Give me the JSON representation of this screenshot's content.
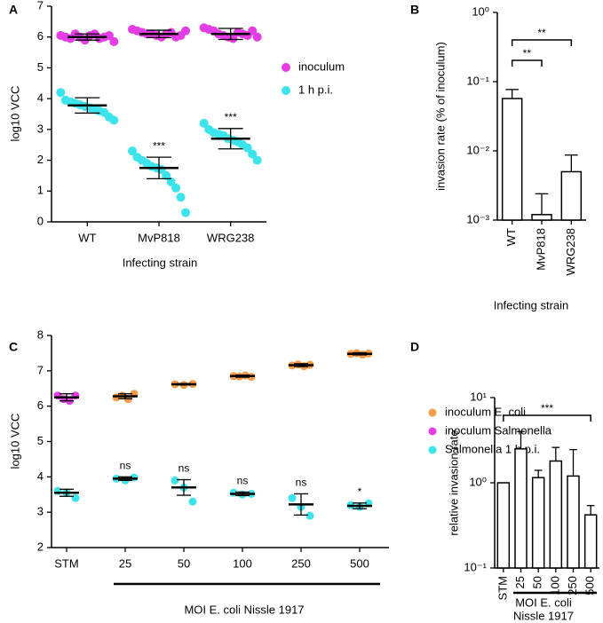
{
  "chart_data": [
    {
      "type": "dot",
      "panel": "A",
      "ylabel": "log10 VCC",
      "xlabel": "Infecting strain",
      "categories": [
        "WT",
        "MvP818",
        "WRG238"
      ],
      "ylim": [
        0,
        7
      ],
      "yticks": [
        0,
        1,
        2,
        3,
        4,
        5,
        6,
        7
      ],
      "series": [
        {
          "name": "inoculum",
          "color": "#e53de6",
          "values": [
            [
              6.05,
              6.0,
              5.95,
              6.1,
              6.0,
              5.9,
              6.05,
              6.1,
              5.95,
              6.0,
              6.05,
              5.85
            ],
            [
              6.25,
              6.2,
              6.15,
              6.1,
              6.1,
              6.05,
              6.0,
              6.1,
              6.15,
              6.0,
              6.05,
              6.2
            ],
            [
              6.3,
              6.25,
              6.2,
              6.1,
              6.05,
              6.0,
              5.95,
              6.15,
              6.1,
              6.05,
              6.2,
              6.0
            ]
          ],
          "mean": [
            6.0,
            6.1,
            6.1
          ],
          "sd": [
            0.1,
            0.12,
            0.18
          ]
        },
        {
          "name": "1 h p.i.",
          "color": "#3de3ea",
          "values": [
            [
              4.2,
              3.95,
              3.9,
              3.85,
              3.8,
              3.75,
              3.7,
              3.65,
              3.6,
              3.55,
              3.4,
              3.3
            ],
            [
              2.3,
              2.1,
              2.0,
              1.9,
              1.8,
              1.75,
              1.7,
              1.5,
              1.3,
              1.1,
              0.8,
              0.3
            ],
            [
              3.2,
              3.0,
              2.9,
              2.85,
              2.8,
              2.7,
              2.65,
              2.6,
              2.5,
              2.4,
              2.2,
              2.0
            ]
          ],
          "mean": [
            3.78,
            1.75,
            2.7
          ],
          "sd": [
            0.25,
            0.35,
            0.33
          ],
          "annotations": [
            null,
            "***",
            "***"
          ]
        }
      ]
    },
    {
      "type": "bar",
      "panel": "B",
      "ylabel": "invasion rate (% of inoculum)",
      "xlabel": "Infecting strain",
      "categories": [
        "WT",
        "MvP818",
        "WRG238"
      ],
      "values": [
        0.057,
        0.0012,
        0.005
      ],
      "errors": [
        0.02,
        0.0012,
        0.0037
      ],
      "log_y": true,
      "ylim": [
        0.001,
        1
      ],
      "yticks": [
        {
          "value": 0.001,
          "label": "10⁻³"
        },
        {
          "value": 0.01,
          "label": "10⁻²"
        },
        {
          "value": 0.1,
          "label": "10⁻¹"
        },
        {
          "value": 1,
          "label": "10⁰"
        }
      ],
      "brackets": [
        {
          "between": [
            "WT",
            "MvP818"
          ],
          "label": "**"
        },
        {
          "between": [
            "WT",
            "WRG238"
          ],
          "label": "**"
        }
      ]
    },
    {
      "type": "dot",
      "panel": "C",
      "ylabel": "log10 VCC",
      "xlabel": "MOI E. coli Nissle 1917",
      "categories": [
        "STM",
        "25",
        "50",
        "100",
        "250",
        "500"
      ],
      "ylim": [
        2,
        8
      ],
      "yticks": [
        2,
        3,
        4,
        5,
        6,
        7,
        8
      ],
      "series": [
        {
          "name": "inoculum E. coli",
          "color": "#f59a45",
          "values": [
            null,
            [
              6.25,
              6.3,
              6.2,
              6.35
            ],
            [
              6.62,
              6.6,
              6.63
            ],
            [
              6.85,
              6.84,
              6.87,
              6.83
            ],
            [
              7.15,
              7.18,
              7.13,
              7.17
            ],
            [
              7.48,
              7.5,
              7.46,
              7.49
            ]
          ],
          "mean": [
            null,
            6.28,
            6.62,
            6.85,
            7.16,
            7.48
          ],
          "sd": [
            null,
            0.07,
            0.02,
            0.03,
            0.04,
            0.03
          ]
        },
        {
          "name": "inoculum Salmonella",
          "color": "#e53de6",
          "values": [
            [
              6.3,
              6.2,
              6.15,
              6.3
            ],
            null,
            null,
            null,
            null,
            null
          ],
          "mean": [
            6.25,
            null,
            null,
            null,
            null,
            null
          ],
          "sd": [
            0.1,
            null,
            null,
            null,
            null,
            null
          ]
        },
        {
          "name": "Salmonella 1 h p.i.",
          "color": "#3de3ea",
          "values": [
            [
              3.6,
              3.55,
              3.4
            ],
            [
              3.95,
              3.9,
              3.98
            ],
            [
              3.9,
              3.7,
              3.3
            ],
            [
              3.55,
              3.5,
              3.52
            ],
            [
              3.4,
              3.15,
              2.9
            ],
            [
              3.2,
              3.15,
              3.25
            ]
          ],
          "mean": [
            3.55,
            3.95,
            3.7,
            3.52,
            3.22,
            3.18
          ],
          "sd": [
            0.1,
            0.05,
            0.22,
            0.05,
            0.3,
            0.08
          ],
          "annotations": [
            null,
            "ns",
            "ns",
            "ns",
            "ns",
            "*"
          ]
        }
      ]
    },
    {
      "type": "bar",
      "panel": "D",
      "ylabel": "relative invasion rate",
      "xlabel": [
        "MOI E. coli",
        "Nissle 1917"
      ],
      "categories": [
        "STM",
        "25",
        "50",
        "100",
        "250",
        "500"
      ],
      "values": [
        1.0,
        2.5,
        1.15,
        1.8,
        1.2,
        0.42
      ],
      "errors": [
        0,
        1.5,
        0.25,
        0.8,
        1.25,
        0.12
      ],
      "log_y": true,
      "ylim": [
        0.1,
        10
      ],
      "yticks": [
        {
          "value": 0.1,
          "label": "10⁻¹"
        },
        {
          "value": 1,
          "label": "10⁰"
        },
        {
          "value": 10,
          "label": "10¹"
        }
      ],
      "brackets": [
        {
          "between": [
            "STM",
            "500"
          ],
          "label": "***"
        }
      ]
    }
  ]
}
